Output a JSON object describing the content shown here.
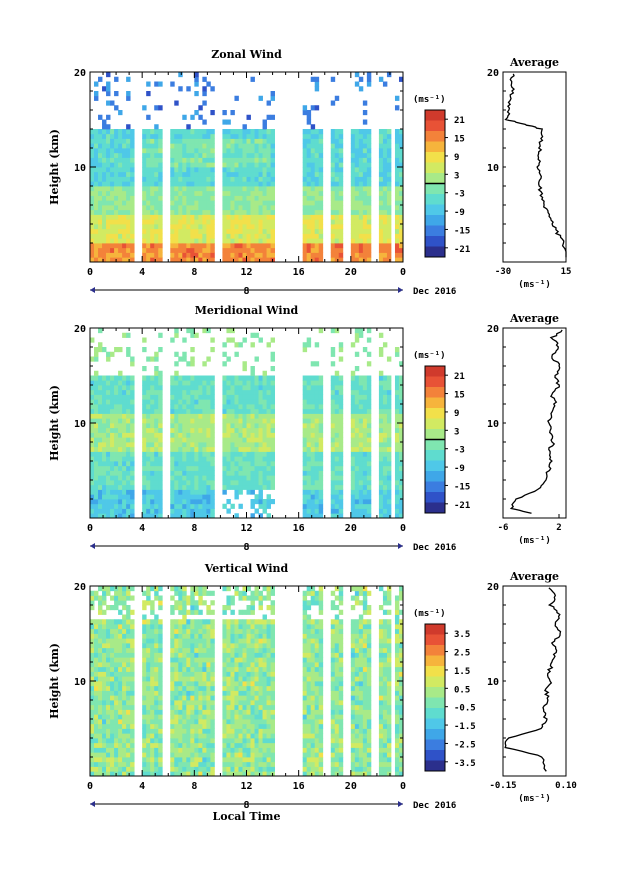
{
  "chart_data": [
    {
      "type": "heatmap",
      "title": "Zonal Wind",
      "ylabel": "Height (km)",
      "ylim": [
        0,
        20
      ],
      "y_ticks": [
        "10",
        "20"
      ],
      "x_ticks": [
        "0",
        "4",
        "8",
        "12",
        "16",
        "20",
        "0"
      ],
      "xlim": [
        0,
        24
      ],
      "date_mark": "8",
      "date_label": "Dec 2016",
      "colorbar": {
        "unit": "(ms⁻¹)",
        "ticks": [
          "21",
          "15",
          "9",
          "3",
          "-3",
          "-9",
          "-15",
          "-21"
        ],
        "range": [
          -24,
          24
        ]
      },
      "data_gaps_hours": [
        [
          3.5,
          4.0
        ],
        [
          5.6,
          6.1
        ],
        [
          9.6,
          10.2
        ],
        [
          14.3,
          16.4
        ],
        [
          17.8,
          18.4
        ],
        [
          19.4,
          20.1
        ],
        [
          21.5,
          22.1
        ],
        [
          23.0,
          23.4
        ]
      ],
      "profile": {
        "title": "Average",
        "xlabel": "(ms⁻¹)",
        "x_ticks": [
          "-30",
          "15"
        ],
        "xlim": [
          -30,
          15
        ],
        "y_ticks": [
          "10",
          "20"
        ],
        "height_km": [
          0.5,
          2,
          3,
          4,
          5,
          6,
          7,
          8,
          9,
          10,
          11,
          12,
          13,
          14,
          14.5,
          15,
          16,
          17,
          18,
          19,
          20
        ],
        "values": [
          15,
          13,
          9,
          6,
          2,
          -1,
          -3,
          -4,
          -4,
          -5,
          -4,
          -4,
          -3,
          -3,
          -15,
          -28,
          -25,
          -26,
          -23,
          -24,
          -22
        ]
      }
    },
    {
      "type": "heatmap",
      "title": "Meridional Wind",
      "ylabel": "Height (km)",
      "ylim": [
        0,
        20
      ],
      "y_ticks": [
        "10",
        "20"
      ],
      "x_ticks": [
        "0",
        "4",
        "8",
        "12",
        "16",
        "20",
        "0"
      ],
      "xlim": [
        0,
        24
      ],
      "date_mark": "8",
      "date_label": "Dec 2016",
      "colorbar": {
        "unit": "(ms⁻¹)",
        "ticks": [
          "21",
          "15",
          "9",
          "3",
          "-3",
          "-9",
          "-15",
          "-21"
        ],
        "range": [
          -24,
          24
        ]
      },
      "data_gaps_hours": [
        [
          3.5,
          4.0
        ],
        [
          5.6,
          6.1
        ],
        [
          9.6,
          10.2
        ],
        [
          14.3,
          16.4
        ],
        [
          17.8,
          18.4
        ],
        [
          19.4,
          20.1
        ],
        [
          21.5,
          22.1
        ],
        [
          23.0,
          23.4
        ]
      ],
      "profile": {
        "title": "Average",
        "xlabel": "(ms⁻¹)",
        "x_ticks": [
          "-6",
          "2"
        ],
        "xlim": [
          -6,
          3
        ],
        "y_ticks": [
          "10",
          "20"
        ],
        "height_km": [
          0.5,
          1,
          2,
          3,
          4,
          5,
          6,
          7,
          8,
          9,
          10,
          11,
          12,
          13,
          14,
          15,
          16,
          17,
          18,
          19,
          20
        ],
        "values": [
          -2,
          -5,
          -4,
          -1,
          0,
          0.5,
          1,
          0.5,
          1.2,
          0.8,
          0.5,
          1,
          1.5,
          1,
          2,
          1.5,
          2,
          1,
          2,
          1,
          3
        ]
      }
    },
    {
      "type": "heatmap",
      "title": "Vertical Wind",
      "ylabel": "Height (km)",
      "xlabel": "Local Time",
      "ylim": [
        0,
        20
      ],
      "y_ticks": [
        "10",
        "20"
      ],
      "x_ticks": [
        "0",
        "4",
        "8",
        "12",
        "16",
        "20",
        "0"
      ],
      "xlim": [
        0,
        24
      ],
      "date_mark": "8",
      "date_label": "Dec 2016",
      "colorbar": {
        "unit": "(ms⁻¹)",
        "ticks": [
          "3.5",
          "2.5",
          "1.5",
          "0.5",
          "-0.5",
          "-1.5",
          "-2.5",
          "-3.5"
        ],
        "range": [
          -4,
          4
        ]
      },
      "data_gaps_hours": [
        [
          3.5,
          4.0
        ],
        [
          5.6,
          6.1
        ],
        [
          9.6,
          10.2
        ],
        [
          14.3,
          16.4
        ],
        [
          17.8,
          18.4
        ],
        [
          19.4,
          20.1
        ],
        [
          21.5,
          22.1
        ],
        [
          23.0,
          23.4
        ]
      ],
      "profile": {
        "title": "Average",
        "xlabel": "(ms⁻¹)",
        "x_ticks": [
          "-0.15",
          "0.10"
        ],
        "xlim": [
          -0.15,
          0.1
        ],
        "y_ticks": [
          "10",
          "20"
        ],
        "height_km": [
          0.5,
          2,
          3,
          4,
          5,
          6,
          7,
          8,
          9,
          10,
          11,
          12,
          13,
          14,
          15,
          16,
          17,
          18,
          19,
          20
        ],
        "values": [
          0.02,
          0.01,
          -0.14,
          -0.13,
          0.0,
          0.02,
          0.01,
          0.03,
          0.02,
          0.04,
          0.03,
          0.05,
          0.06,
          0.05,
          0.08,
          0.06,
          0.07,
          0.04,
          0.06,
          0.03
        ]
      }
    }
  ]
}
